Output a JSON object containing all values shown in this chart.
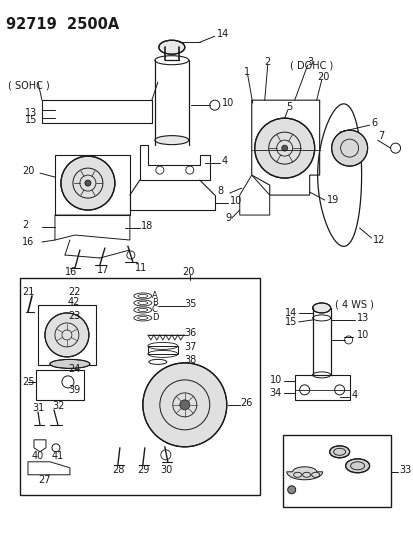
{
  "title": "92719  2500A",
  "bg_color": "#f0f0f0",
  "fg_color": "#1a1a1a",
  "title_fontsize": 10.5,
  "label_fontsize": 7,
  "small_fontsize": 6,
  "sohc_label": "( SOHC )",
  "dohc_label": "( DOHC )",
  "ws4_label": "( 4 WS )",
  "fig_width": 4.14,
  "fig_height": 5.33,
  "dpi": 100
}
